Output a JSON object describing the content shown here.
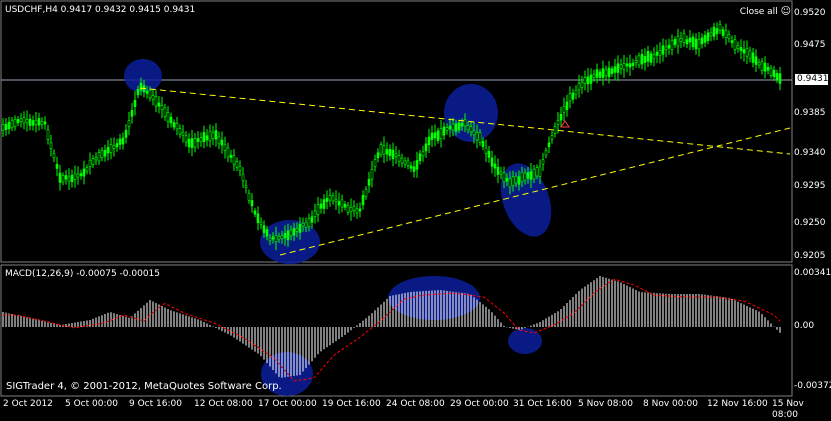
{
  "chart_header": {
    "title": "USDCHF,H4  0.9417 0.9432 0.9415 0.9431",
    "close_all": "Close all",
    "close_all_icon": "smiley-icon"
  },
  "price_axis": {
    "ticks": [
      "0.9520",
      "0.9475",
      "0.9431",
      "0.9385",
      "0.9340",
      "0.9295",
      "0.9250",
      "0.9205"
    ],
    "current_price": "0.9431"
  },
  "macd": {
    "title": "MACD(12,26,9) -0.00075 -0.00015",
    "ticks": [
      "0.00341",
      "0.00",
      "-0.00372"
    ]
  },
  "date_axis": {
    "labels": [
      "2 Oct 2012",
      "5 Oct 00:00",
      "9 Oct 16:00",
      "12 Oct 08:00",
      "17 Oct 00:00",
      "19 Oct 16:00",
      "24 Oct 08:00",
      "29 Oct 00:00",
      "31 Oct 16:00",
      "5 Nov 08:00",
      "8 Nov 00:00",
      "12 Nov 16:00",
      "15 Nov 08:00"
    ]
  },
  "footer": {
    "copyright": "SIGTrader 4, © 2001-2012, MetaQuotes Software Corp."
  },
  "colors": {
    "background": "#000000",
    "candles": "#00ff00",
    "grid": "#808080",
    "trendline": "#ffff00",
    "highlight": "#0a1f9c",
    "macd_histogram": "#ffffff",
    "macd_signal": "#ff0000"
  }
}
